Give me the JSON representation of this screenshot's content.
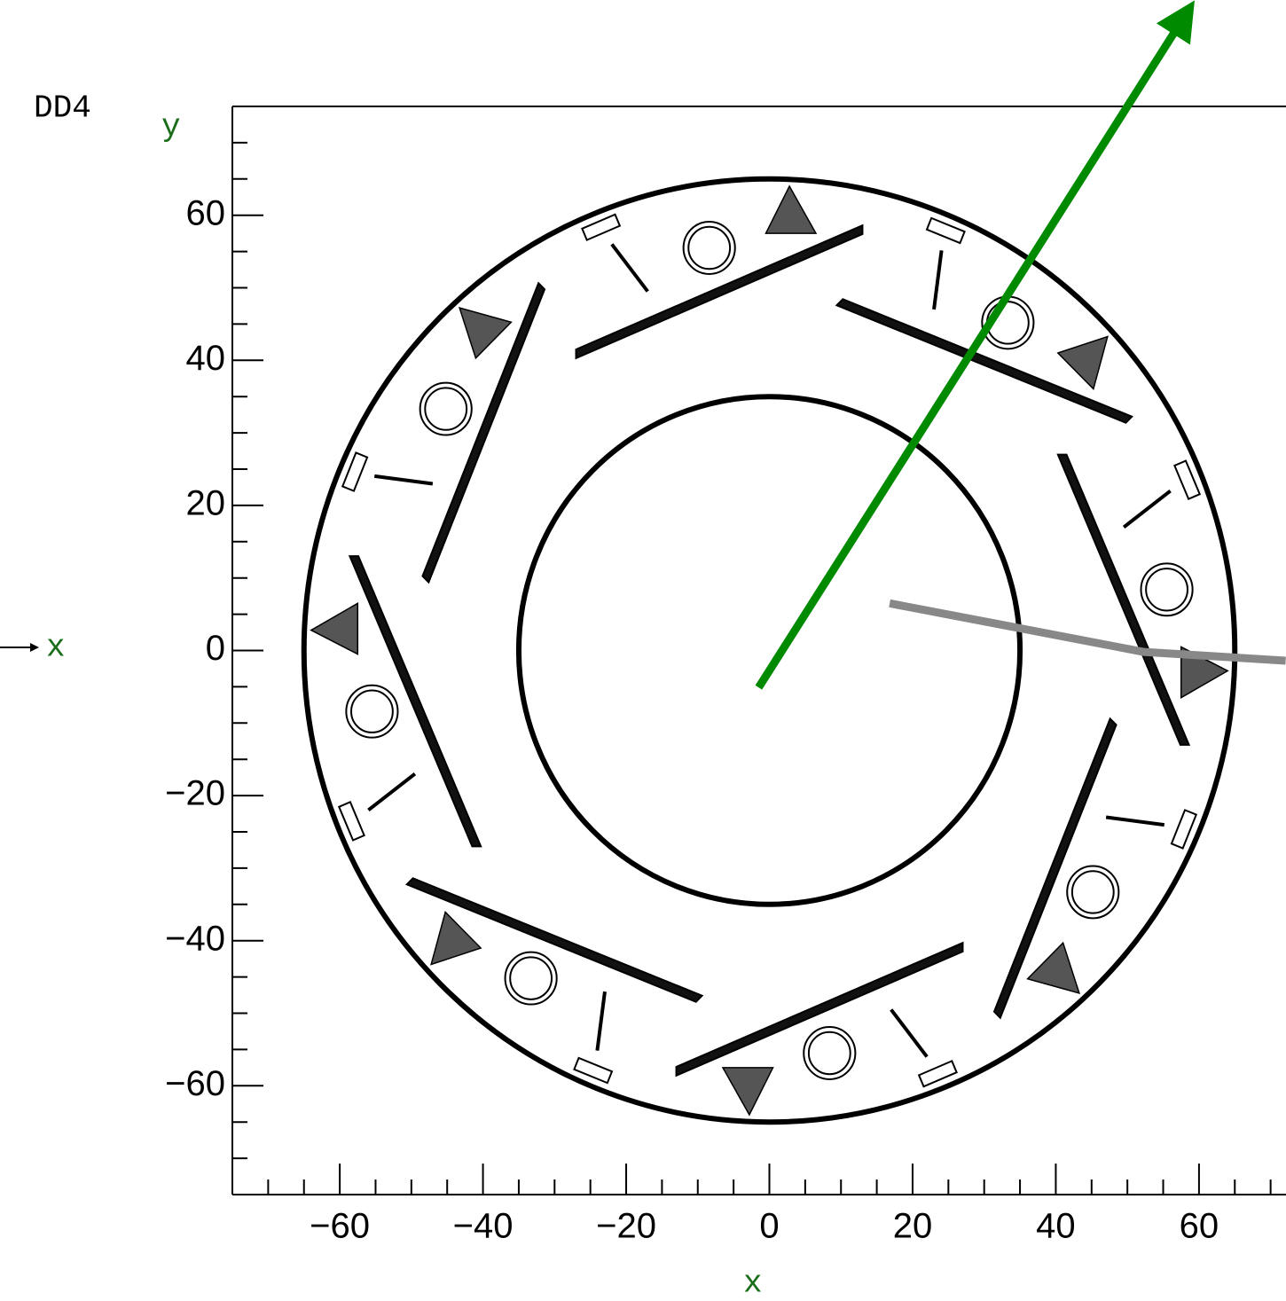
{
  "chart_data": {
    "type": "detector",
    "title": "DD4",
    "x_label": "x",
    "y_label": "y",
    "axis_indicator": "x",
    "label_color": "#1a6e1a",
    "xlim": [
      -75,
      75
    ],
    "ylim": [
      -75,
      75
    ],
    "xticks": [
      {
        "value": -60,
        "label": "−60"
      },
      {
        "value": -40,
        "label": "−40"
      },
      {
        "value": -20,
        "label": "−20"
      },
      0,
      20,
      40,
      60
    ],
    "yticks": [
      {
        "value": -60,
        "label": "−60"
      },
      {
        "value": -40,
        "label": "−40"
      },
      {
        "value": -20,
        "label": "−20"
      },
      0,
      20,
      40,
      60
    ],
    "xminorticks": [
      -70,
      -65,
      -55,
      -50,
      -45,
      -35,
      -30,
      -25,
      -15,
      -10,
      -5,
      5,
      10,
      15,
      25,
      30,
      35,
      45,
      50,
      55,
      65,
      70
    ],
    "yminorticks": [
      -70,
      -65,
      -55,
      -50,
      -45,
      -35,
      -30,
      -25,
      -15,
      -10,
      -5,
      5,
      10,
      15,
      25,
      30,
      35,
      45,
      50,
      55,
      65,
      70
    ],
    "rings": [
      35,
      65
    ],
    "tracks": [
      {
        "color": "#008a00",
        "arrow": true,
        "x": [
          -1.5,
          57.9
        ],
        "y": [
          -5.1,
          87.3
        ]
      },
      {
        "color": "#888888",
        "arrow": false,
        "x": [
          16.8,
          52.3,
          72.1
        ],
        "y": [
          6.5,
          -0.2,
          -1.4
        ]
      }
    ]
  }
}
